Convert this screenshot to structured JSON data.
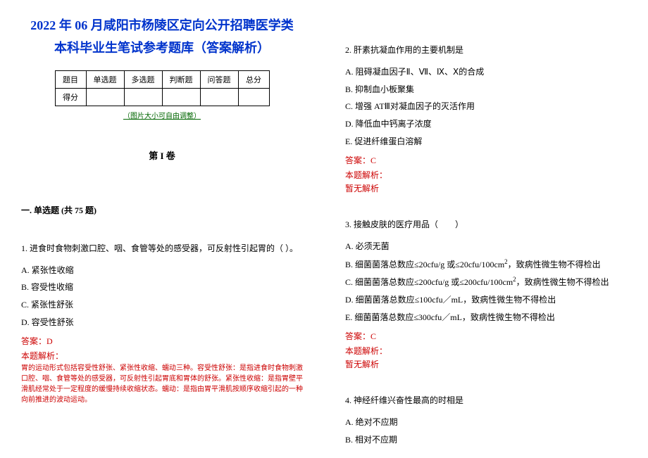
{
  "title_line1": "2022 年 06 月咸阳市杨陵区定向公开招聘医学类",
  "title_line2": "本科毕业生笔试参考题库（答案解析）",
  "table_headers": [
    "题目",
    "单选题",
    "多选题",
    "判断题",
    "问答题",
    "总分"
  ],
  "table_row_label": "得分",
  "image_note": "（图片大小可自由调整）",
  "volume_title": "第 I 卷",
  "section_title": "一. 单选题 (共 75 题)",
  "q1": {
    "text": "1. 进食时食物刺激口腔、咽、食管等处的感受器，可反射性引起胃的（ ）。",
    "optA": "A. 紧张性收缩",
    "optB": "B. 容受性收缩",
    "optC": "C. 紧张性舒张",
    "optD": "D. 容受性舒张",
    "answer": "答案：D",
    "exp_label": "本题解析：",
    "exp_text": "胃的运动形式包括容受性舒张、紧张性收缩、蠕动三种。容受性舒张：是指进食时食物刺激口腔、咽、食管等处的感受器，可反射性引起胃底和胃体的舒张。紧张性收缩：是指胃壁平滑肌经常处于一定程度的缓慢持续收缩状态。蠕动：是指由胃平滑肌按顺序收缩引起的一种向前推进的波动运动。"
  },
  "q2": {
    "text": "2. 肝素抗凝血作用的主要机制是",
    "optA": "A. 阻碍凝血因子Ⅱ、Ⅶ、Ⅸ、Ⅹ的合成",
    "optB": "B. 抑制血小板聚集",
    "optC": "C. 增强 ATⅢ对凝血因子的灭活作用",
    "optD": "D. 降低血中钙离子浓度",
    "optE": "E. 促进纤维蛋白溶解",
    "answer": "答案：C",
    "exp_label": "本题解析：",
    "no_exp": "暂无解析"
  },
  "q3": {
    "text": "3. 接触皮肤的医疗用品（　　）",
    "optA": "A. 必须无菌",
    "optB_pre": "B. 细菌菌落总数应≤20cfu/g 或≤20cfu/100cm",
    "optB_suf": "，致病性微生物不得检出",
    "optC_pre": "C. 细菌菌落总数应≤200cfu/g 或≤200cfu/100cm",
    "optC_suf": "，致病性微生物不得检出",
    "optD": "D. 细菌菌落总数应≤100cfu／mL，致病性微生物不得检出",
    "optE": "E. 细菌菌落总数应≤300cfu／mL，致病性微生物不得检出",
    "answer": "答案：C",
    "exp_label": "本题解析：",
    "no_exp": "暂无解析"
  },
  "q4": {
    "text": "4. 神经纤维兴奋性最高的时相是",
    "optA": "A. 绝对不应期",
    "optB": "B. 相对不应期"
  },
  "sup2": "2"
}
